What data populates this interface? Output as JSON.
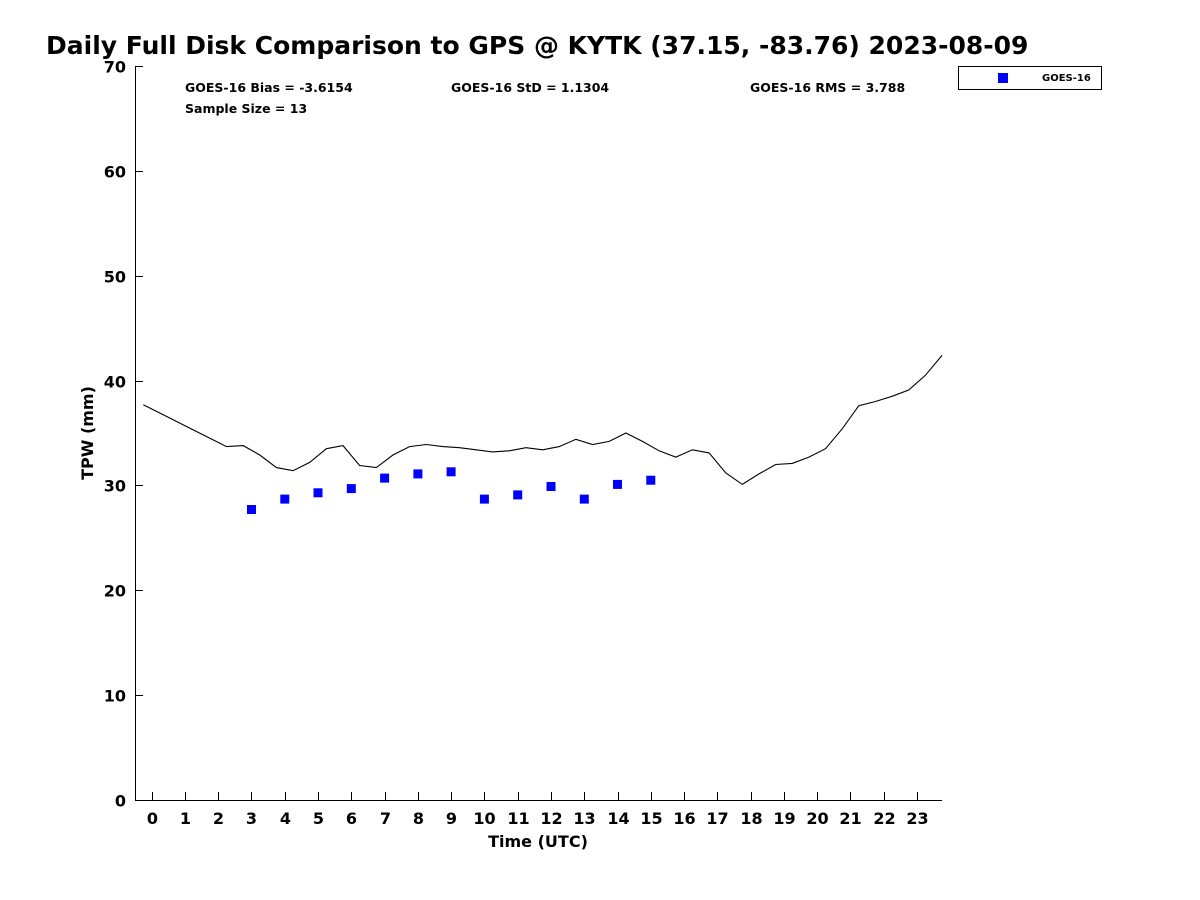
{
  "chart_data": {
    "type": "scatter",
    "title": "Daily Full Disk Comparison to GPS @ KYTK (37.15, -83.76) 2023-08-09",
    "xlabel": "Time (UTC)",
    "ylabel": "TPW (mm)",
    "xlim": [
      -0.5,
      23.75
    ],
    "ylim": [
      0,
      70
    ],
    "x_ticks": [
      "0",
      "1",
      "2",
      "3",
      "4",
      "5",
      "6",
      "7",
      "8",
      "9",
      "10",
      "11",
      "12",
      "13",
      "14",
      "15",
      "16",
      "17",
      "18",
      "19",
      "20",
      "21",
      "22",
      "23"
    ],
    "y_ticks": [
      "0",
      "10",
      "20",
      "30",
      "40",
      "50",
      "60",
      "70"
    ],
    "grid": false,
    "legend_position": "top-right, outside plot",
    "stats": {
      "bias": "GOES-16 Bias = -3.6154",
      "std": "GOES-16 StD = 1.1304",
      "rms": "GOES-16 RMS = 3.788",
      "sample": "Sample Size = 13"
    },
    "series": [
      {
        "name": "GOES-16",
        "kind": "scatter",
        "marker": "square",
        "color": "#0000ff",
        "x": [
          3.0,
          4.0,
          5.0,
          6.0,
          7.0,
          8.0,
          9.0,
          10.0,
          11.0,
          12.0,
          13.0,
          14.0,
          15.0
        ],
        "y": [
          27.7,
          28.7,
          29.3,
          29.7,
          30.7,
          31.1,
          31.3,
          28.7,
          29.1,
          29.9,
          28.7,
          30.1,
          30.5
        ]
      },
      {
        "kind": "line",
        "color": "#000000",
        "x": [
          -0.25,
          0.25,
          0.75,
          1.25,
          1.75,
          2.25,
          2.75,
          3.25,
          3.75,
          4.25,
          4.75,
          5.25,
          5.75,
          6.25,
          6.75,
          7.25,
          7.75,
          8.25,
          8.75,
          9.25,
          9.75,
          10.25,
          10.75,
          11.25,
          11.75,
          12.25,
          12.75,
          13.25,
          13.75,
          14.25,
          14.75,
          15.25,
          15.75,
          16.25,
          16.75,
          17.25,
          17.75,
          18.25,
          18.75,
          19.25,
          19.75,
          20.25,
          20.75,
          21.25,
          21.75,
          22.25,
          22.75,
          23.25,
          23.75
        ],
        "y": [
          37.7,
          36.9,
          36.1,
          35.3,
          34.5,
          33.7,
          33.8,
          32.9,
          31.7,
          31.4,
          32.2,
          33.5,
          33.8,
          31.9,
          31.7,
          32.9,
          33.7,
          33.9,
          33.7,
          33.6,
          33.4,
          33.2,
          33.3,
          33.6,
          33.4,
          33.7,
          34.4,
          33.9,
          34.2,
          35.0,
          34.2,
          33.3,
          32.7,
          33.4,
          33.1,
          31.2,
          30.1,
          31.1,
          32.0,
          32.1,
          32.7,
          33.5,
          35.4,
          37.6,
          38.0,
          38.5,
          39.1,
          40.5,
          42.4
        ]
      }
    ]
  }
}
